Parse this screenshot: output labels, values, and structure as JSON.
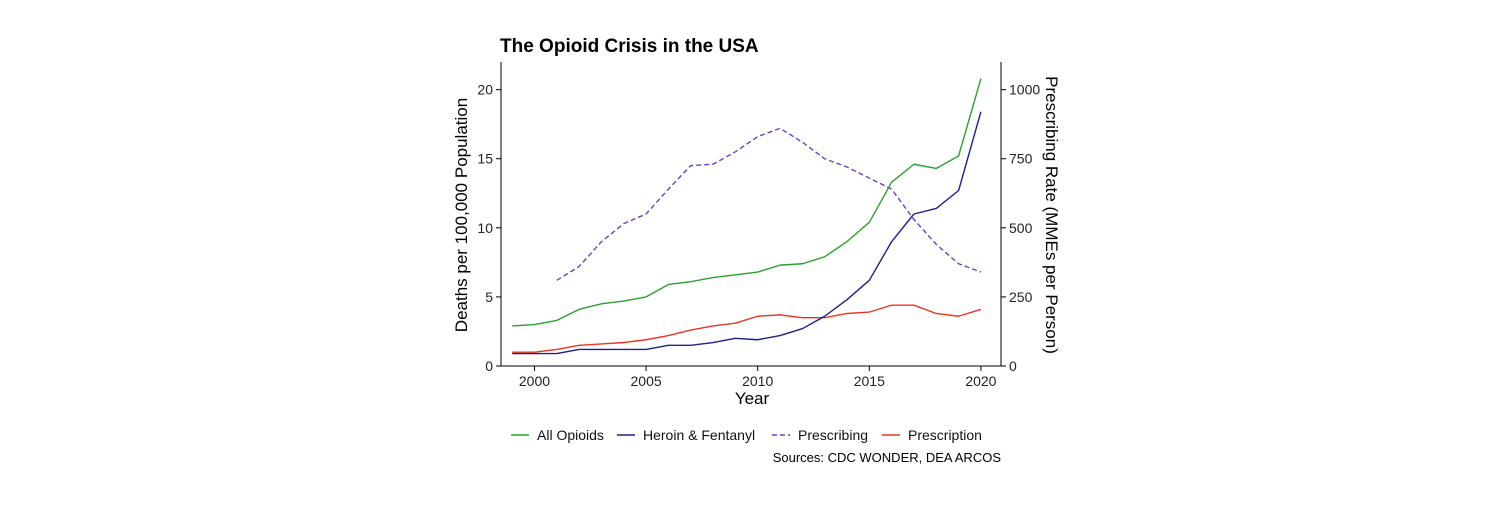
{
  "colors": {
    "all_opioids": "#2ca02c",
    "heroin_fentanyl": "#1f1f8f",
    "prescribing": "#6a3fc8",
    "prescription": "#ee3322",
    "axis": "#000000"
  },
  "chart_data": {
    "type": "line",
    "title": "The Opioid Crisis in the USA",
    "xlabel": "Year",
    "ylabel": "Deaths per 100,000 Population",
    "y2label": "Prescribing Rate (MMEs per Person)",
    "source": "Sources: CDC WONDER, DEA ARCOS",
    "xlim": [
      1998.5,
      2020.9
    ],
    "ylim": [
      0,
      22
    ],
    "y2lim": [
      0,
      1100
    ],
    "x_ticks": [
      2000,
      2005,
      2010,
      2015,
      2020
    ],
    "x_tick_labels": [
      "2000",
      "2005",
      "2010",
      "2015",
      "2020"
    ],
    "y_ticks": [
      0,
      5,
      10,
      15,
      20
    ],
    "y_tick_labels": [
      "0",
      "5",
      "10",
      "15",
      "20"
    ],
    "y2_ticks": [
      0,
      250,
      500,
      750,
      1000
    ],
    "y2_tick_labels": [
      "0",
      "250",
      "500",
      "750",
      "1000"
    ],
    "grid": false,
    "legend_position": "bottom",
    "series": [
      {
        "name": "All Opioids",
        "key": "all",
        "axis": "left",
        "dash": "solid",
        "x": [
          1999,
          2000,
          2001,
          2002,
          2003,
          2004,
          2005,
          2006,
          2007,
          2008,
          2009,
          2010,
          2011,
          2012,
          2013,
          2014,
          2015,
          2016,
          2017,
          2018,
          2019,
          2020
        ],
        "values": [
          2.9,
          3.0,
          3.3,
          4.1,
          4.5,
          4.7,
          5.0,
          5.9,
          6.1,
          6.4,
          6.6,
          6.8,
          7.3,
          7.4,
          7.9,
          9.0,
          10.4,
          13.3,
          14.6,
          14.3,
          15.2,
          20.8
        ]
      },
      {
        "name": "Heroin & Fentanyl",
        "key": "heroin",
        "axis": "left",
        "dash": "solid",
        "x": [
          1999,
          2000,
          2001,
          2002,
          2003,
          2004,
          2005,
          2006,
          2007,
          2008,
          2009,
          2010,
          2011,
          2012,
          2013,
          2014,
          2015,
          2016,
          2017,
          2018,
          2019,
          2020
        ],
        "values": [
          0.9,
          0.9,
          0.9,
          1.2,
          1.2,
          1.2,
          1.2,
          1.5,
          1.5,
          1.7,
          2.0,
          1.9,
          2.2,
          2.7,
          3.6,
          4.8,
          6.2,
          9.0,
          11.0,
          11.4,
          12.7,
          18.4
        ]
      },
      {
        "name": "Prescribing",
        "key": "prescribing",
        "axis": "right",
        "dash": "dashed",
        "x": [
          2001,
          2002,
          2003,
          2004,
          2005,
          2006,
          2007,
          2008,
          2009,
          2010,
          2011,
          2012,
          2013,
          2014,
          2015,
          2016,
          2017,
          2018,
          2019,
          2020
        ],
        "values": [
          310,
          360,
          450,
          515,
          550,
          640,
          725,
          730,
          775,
          830,
          860,
          810,
          750,
          720,
          680,
          640,
          530,
          440,
          370,
          340
        ]
      },
      {
        "name": "Prescription",
        "key": "prescription",
        "axis": "left",
        "dash": "solid",
        "x": [
          1999,
          2000,
          2001,
          2002,
          2003,
          2004,
          2005,
          2006,
          2007,
          2008,
          2009,
          2010,
          2011,
          2012,
          2013,
          2014,
          2015,
          2016,
          2017,
          2018,
          2019,
          2020
        ],
        "values": [
          1.0,
          1.0,
          1.2,
          1.5,
          1.6,
          1.7,
          1.9,
          2.2,
          2.6,
          2.9,
          3.1,
          3.6,
          3.7,
          3.5,
          3.5,
          3.8,
          3.9,
          4.4,
          4.4,
          3.8,
          3.6,
          4.1
        ]
      }
    ]
  }
}
